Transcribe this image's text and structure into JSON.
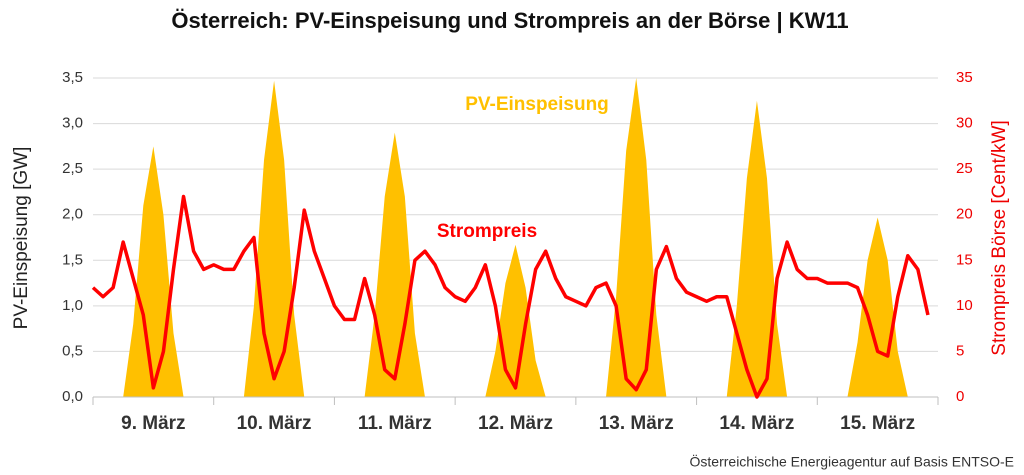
{
  "chart_data": {
    "type": "area-line",
    "title": "Österreich: PV-Einspeisung und Strompreis an der Börse | KW11",
    "y_label": "PV-Einspeisung [GW]",
    "y2_label": "Strompreis Börse [Cent/kW]",
    "source": "Österreichische Energieagentur auf Basis ENTSO-E",
    "x": [
      0,
      2,
      4,
      6,
      8,
      10,
      12,
      14,
      16,
      18,
      20,
      22,
      24,
      26,
      28,
      30,
      32,
      34,
      36,
      38,
      40,
      42,
      44,
      46,
      48,
      50,
      52,
      54,
      56,
      58,
      60,
      62,
      64,
      66,
      68,
      70,
      72,
      74,
      76,
      78,
      80,
      82,
      84,
      86,
      88,
      90,
      92,
      94,
      96,
      98,
      100,
      102,
      104,
      106,
      108,
      110,
      112,
      114,
      116,
      118,
      120,
      122,
      124,
      126,
      128,
      130,
      132,
      134,
      136,
      138,
      140,
      142,
      144,
      146,
      148,
      150,
      152,
      154,
      156,
      158,
      160,
      162,
      164,
      166
    ],
    "xlim": [
      0,
      168
    ],
    "xticks": [
      {
        "value": 12,
        "label": "9. März"
      },
      {
        "value": 36,
        "label": "10. März"
      },
      {
        "value": 60,
        "label": "11. März"
      },
      {
        "value": 84,
        "label": "12. März"
      },
      {
        "value": 108,
        "label": "13. März"
      },
      {
        "value": 132,
        "label": "14. März"
      },
      {
        "value": 156,
        "label": "15. März"
      }
    ],
    "ylim": [
      0,
      3.5
    ],
    "yticks": [
      {
        "value": 0,
        "label": "0,0"
      },
      {
        "value": 0.5,
        "label": "0,5"
      },
      {
        "value": 1,
        "label": "1,0"
      },
      {
        "value": 1.5,
        "label": "1,5"
      },
      {
        "value": 2,
        "label": "2,0"
      },
      {
        "value": 2.5,
        "label": "2,5"
      },
      {
        "value": 3,
        "label": "3,0"
      },
      {
        "value": 3.5,
        "label": "3,5"
      }
    ],
    "y2lim": [
      0,
      35
    ],
    "y2ticks": [
      0,
      5,
      10,
      15,
      20,
      25,
      30,
      35
    ],
    "grid": true,
    "series": [
      {
        "name": "PV-Einspeisung",
        "kind": "area",
        "color": "#ffc000",
        "values": [
          0,
          0,
          0,
          0,
          0.8,
          2.1,
          2.75,
          2.0,
          0.7,
          0,
          0,
          0,
          0,
          0,
          0,
          0,
          1.0,
          2.6,
          3.47,
          2.6,
          0.9,
          0,
          0,
          0,
          0,
          0,
          0,
          0,
          0.9,
          2.2,
          2.9,
          2.2,
          0.7,
          0,
          0,
          0,
          0,
          0,
          0,
          0,
          0.5,
          1.25,
          1.67,
          1.2,
          0.4,
          0,
          0,
          0,
          0,
          0,
          0,
          0,
          1.1,
          2.7,
          3.5,
          2.6,
          0.9,
          0,
          0,
          0,
          0,
          0,
          0,
          0,
          1.0,
          2.4,
          3.25,
          2.4,
          0.8,
          0,
          0,
          0,
          0,
          0,
          0,
          0,
          0.6,
          1.5,
          1.97,
          1.5,
          0.5,
          0,
          0,
          0
        ]
      },
      {
        "name": "Strompreis",
        "kind": "line",
        "axis": "y2",
        "color": "#ff0000",
        "values": [
          12,
          11,
          12,
          17,
          13,
          9,
          1,
          5,
          14,
          22,
          16,
          14,
          14.5,
          14,
          14,
          16,
          17.5,
          7,
          2,
          5,
          12,
          20.5,
          16,
          13,
          10,
          8.5,
          8.5,
          13,
          9,
          3,
          2,
          8,
          15,
          16,
          14.5,
          12,
          11,
          10.5,
          12,
          14.5,
          10,
          3,
          1,
          8,
          14,
          16,
          13,
          11,
          10.5,
          10,
          12,
          12.5,
          10,
          2,
          0.8,
          3,
          14,
          16.5,
          13,
          11.5,
          11,
          10.5,
          11,
          11,
          7,
          3,
          0,
          2,
          13,
          17,
          14,
          13,
          13,
          12.5,
          12.5,
          12.5,
          12,
          9,
          5,
          4.5,
          11,
          15.5,
          14,
          9
        ]
      }
    ]
  }
}
